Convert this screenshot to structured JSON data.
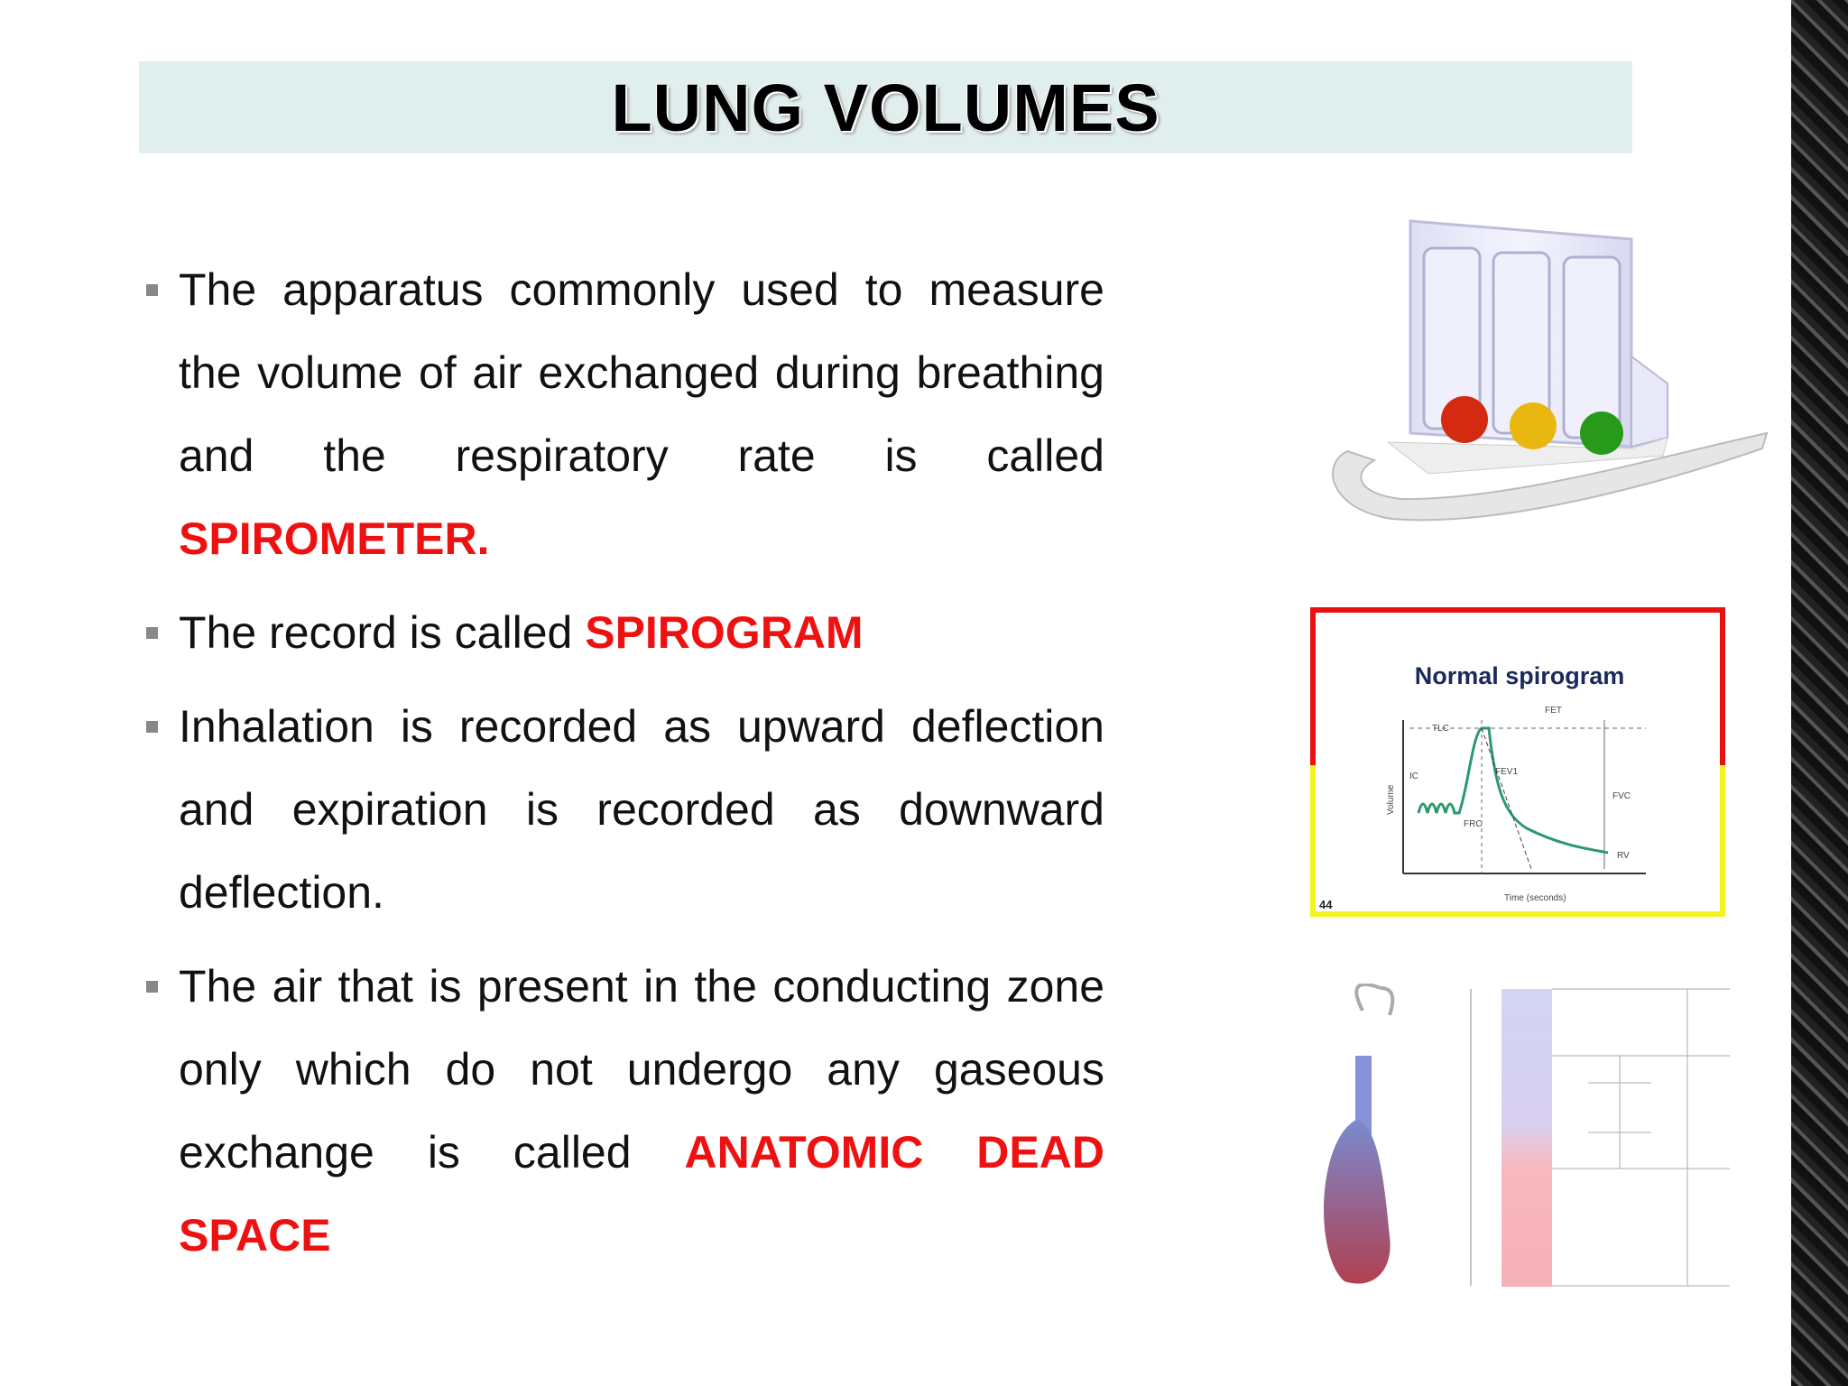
{
  "header": {
    "title": "LUNG VOLUMES"
  },
  "bullets": [
    {
      "text": "The apparatus commonly used to measure the volume of air exchanged during breathing and the respiratory rate is called",
      "emphasis": "SPIROMETER."
    },
    {
      "text": "The record is called",
      "emphasis": "SPIROGRAM"
    },
    {
      "text": "Inhalation is recorded as upward deflection and expiration is recorded as downward deflection."
    },
    {
      "text": "The air that is present in the conducting zone only which do not undergo any gaseous exchange is called",
      "emphasis": "ANATOMIC DEAD SPACE"
    }
  ],
  "spirogram": {
    "title": "Normal spirogram",
    "slide_number": "44",
    "labels": [
      "TLC",
      "FET",
      "IC",
      "FEV1",
      "FVC",
      "FRC",
      "RV",
      "Volume",
      "Time (seconds)"
    ]
  }
}
